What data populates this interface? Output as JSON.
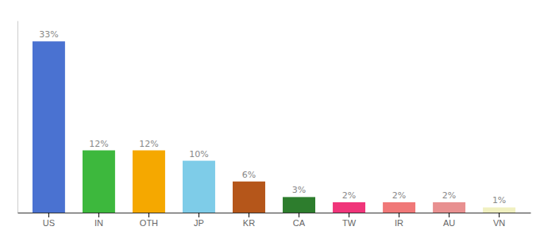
{
  "chart_data": {
    "type": "bar",
    "categories": [
      "US",
      "IN",
      "OTH",
      "JP",
      "KR",
      "CA",
      "TW",
      "IR",
      "AU",
      "VN"
    ],
    "values": [
      33,
      12,
      12,
      10,
      6,
      3,
      2,
      2,
      2,
      1
    ],
    "value_labels": [
      "33%",
      "12%",
      "12%",
      "10%",
      "6%",
      "3%",
      "2%",
      "2%",
      "2%",
      "1%"
    ],
    "colors": [
      "#4a72d1",
      "#3db83d",
      "#f5a800",
      "#7ecce8",
      "#b5561a",
      "#2d7d2d",
      "#f0357a",
      "#f07878",
      "#e89090",
      "#f0f0c0"
    ],
    "ylim": [
      0,
      37
    ],
    "data_labels": true,
    "tick_labels": "x",
    "grid": false
  }
}
